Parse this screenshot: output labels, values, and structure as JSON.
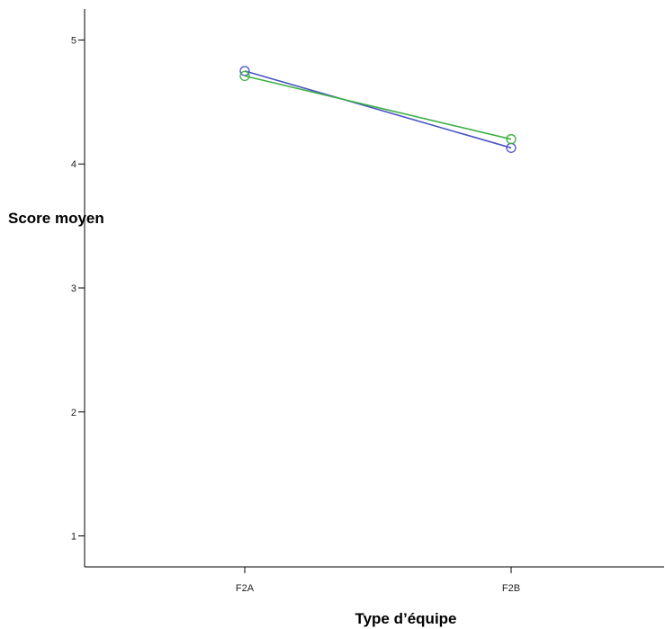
{
  "chart_data": {
    "type": "line",
    "xlabel": "Type  d’équipe",
    "ylabel": "Score moyen",
    "categories": [
      "F2A",
      "F2B"
    ],
    "ylim": [
      0.75,
      5.25
    ],
    "yticks": [
      1,
      2,
      3,
      4,
      5
    ],
    "grid": false,
    "legend": "none",
    "series": [
      {
        "values": [
          4.75,
          4.13
        ],
        "color": "#4a55c4",
        "marker": "circle"
      },
      {
        "values": [
          4.71,
          4.2
        ],
        "color": "#3cb043",
        "marker": "circle"
      }
    ]
  }
}
